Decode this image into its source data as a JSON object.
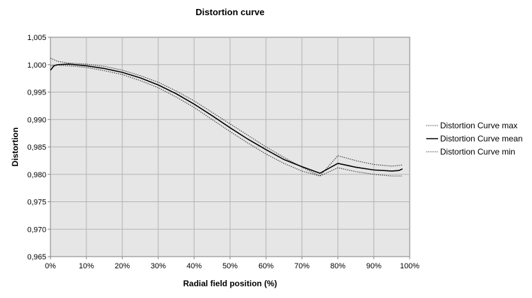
{
  "chart_data": {
    "type": "line",
    "title": "Distortion curve",
    "xlabel": "Radial field position (%)",
    "ylabel": "Distortion",
    "x_ticks": [
      "0%",
      "10%",
      "20%",
      "30%",
      "40%",
      "50%",
      "60%",
      "70%",
      "80%",
      "90%",
      "100%"
    ],
    "y_ticks": [
      "0,965",
      "0,970",
      "0,975",
      "0,980",
      "0,985",
      "0,990",
      "0,995",
      "1,000",
      "1,005"
    ],
    "xlim": [
      0,
      100
    ],
    "ylim": [
      0.965,
      1.005
    ],
    "grid": true,
    "plot_background": "#e6e6e6",
    "legend_position": "right",
    "series": [
      {
        "name": "Distortion Curve max",
        "style": "dotted",
        "color": "#333333",
        "x": [
          0,
          2,
          5,
          10,
          15,
          20,
          25,
          30,
          35,
          40,
          45,
          50,
          55,
          60,
          65,
          70,
          75,
          80,
          85,
          90,
          95,
          98
        ],
        "y": [
          1.0012,
          1.0006,
          1.0003,
          1.0001,
          0.9997,
          0.999,
          0.998,
          0.9968,
          0.9952,
          0.9934,
          0.9913,
          0.9892,
          0.9871,
          0.985,
          0.9831,
          0.9813,
          0.9797,
          0.9834,
          0.9825,
          0.9818,
          0.9815,
          0.9817
        ]
      },
      {
        "name": "Distortion Curve mean",
        "style": "solid",
        "color": "#000000",
        "x": [
          0,
          1,
          2,
          5,
          10,
          15,
          20,
          25,
          30,
          35,
          40,
          45,
          50,
          55,
          60,
          65,
          70,
          75,
          80,
          85,
          90,
          95,
          97,
          98
        ],
        "y": [
          0.999,
          0.9998,
          1.0,
          1.0001,
          0.9998,
          0.9993,
          0.9986,
          0.9976,
          0.9963,
          0.9947,
          0.9928,
          0.9907,
          0.9885,
          0.9864,
          0.9845,
          0.9827,
          0.9814,
          0.9802,
          0.982,
          0.9813,
          0.9808,
          0.9806,
          0.9807,
          0.981
        ]
      },
      {
        "name": "Distortion Curve min",
        "style": "dotted",
        "color": "#333333",
        "x": [
          0,
          2,
          5,
          10,
          15,
          20,
          25,
          30,
          35,
          40,
          45,
          50,
          55,
          60,
          65,
          70,
          75,
          80,
          85,
          90,
          95,
          98
        ],
        "y": [
          0.9998,
          0.9999,
          0.9998,
          0.9995,
          0.9989,
          0.9982,
          0.9971,
          0.9958,
          0.9941,
          0.9922,
          0.99,
          0.9878,
          0.9857,
          0.9837,
          0.982,
          0.9806,
          0.9797,
          0.9812,
          0.9805,
          0.98,
          0.9797,
          0.9797
        ]
      }
    ]
  }
}
